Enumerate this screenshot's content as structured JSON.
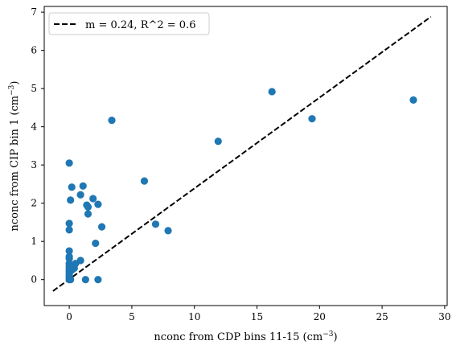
{
  "chart_data": {
    "type": "scatter",
    "title": "",
    "xlabel": "nconc from CDP bins 11-15 (cm",
    "xlabel_sup": "−3",
    "xlabel_suffix": ")",
    "ylabel": "nconc from CIP bin 1 (cm",
    "ylabel_sup": "−3",
    "ylabel_suffix": ")",
    "xlim": [
      -2.0,
      30.2
    ],
    "ylim": [
      -0.68,
      7.15
    ],
    "xticks": [
      0,
      5,
      10,
      15,
      20,
      25,
      30
    ],
    "yticks": [
      0,
      1,
      2,
      3,
      4,
      5,
      6,
      7
    ],
    "grid": false,
    "legend_position": "top-left",
    "series": [
      {
        "kind": "points",
        "color": "#1f77b4",
        "points": [
          [
            0.0,
            3.05
          ],
          [
            0.2,
            2.42
          ],
          [
            0.1,
            2.08
          ],
          [
            0.0,
            1.47
          ],
          [
            0.0,
            1.3
          ],
          [
            0.0,
            0.75
          ],
          [
            0.0,
            0.6
          ],
          [
            0.0,
            0.55
          ],
          [
            0.0,
            0.42
          ],
          [
            0.0,
            0.35
          ],
          [
            0.0,
            0.28
          ],
          [
            0.0,
            0.22
          ],
          [
            0.0,
            0.15
          ],
          [
            0.0,
            0.1
          ],
          [
            0.0,
            0.05
          ],
          [
            0.0,
            0.0
          ],
          [
            0.1,
            0.0
          ],
          [
            0.2,
            0.25
          ],
          [
            0.3,
            0.35
          ],
          [
            0.4,
            0.3
          ],
          [
            0.5,
            0.42
          ],
          [
            0.9,
            0.5
          ],
          [
            0.9,
            2.22
          ],
          [
            1.1,
            2.45
          ],
          [
            1.4,
            1.95
          ],
          [
            1.5,
            1.9
          ],
          [
            1.5,
            1.72
          ],
          [
            1.9,
            2.12
          ],
          [
            2.1,
            0.95
          ],
          [
            2.3,
            1.97
          ],
          [
            2.6,
            1.38
          ],
          [
            1.3,
            0.0
          ],
          [
            2.3,
            0.0
          ],
          [
            3.4,
            4.17
          ],
          [
            6.0,
            2.58
          ],
          [
            6.9,
            1.45
          ],
          [
            7.9,
            1.28
          ],
          [
            11.9,
            3.62
          ],
          [
            16.2,
            4.92
          ],
          [
            19.4,
            4.21
          ],
          [
            27.5,
            4.7
          ]
        ]
      },
      {
        "kind": "line",
        "name": "m = 0.24, R^2 = 0.6",
        "color": "#000000",
        "dash": "dashed",
        "x": [
          -1.3,
          28.9
        ],
        "y": [
          -0.3,
          6.88
        ]
      }
    ]
  }
}
